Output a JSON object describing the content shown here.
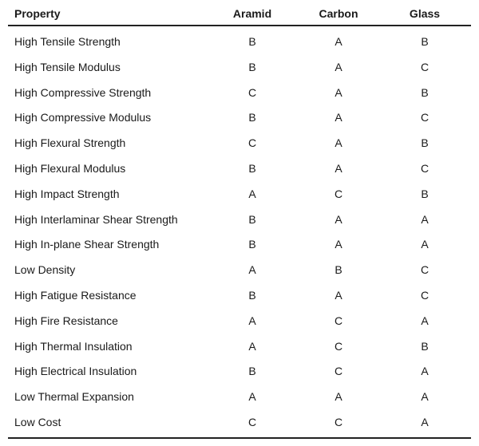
{
  "table": {
    "header": [
      "Property",
      "Aramid",
      "Carbon",
      "Glass"
    ],
    "rows": [
      [
        "High Tensile Strength",
        "B",
        "A",
        "B"
      ],
      [
        "High Tensile Modulus",
        "B",
        "A",
        "C"
      ],
      [
        "High Compressive Strength",
        "C",
        "A",
        "B"
      ],
      [
        "High Compressive Modulus",
        "B",
        "A",
        "C"
      ],
      [
        "High Flexural Strength",
        "C",
        "A",
        "B"
      ],
      [
        "High Flexural Modulus",
        "B",
        "A",
        "C"
      ],
      [
        "High Impact Strength",
        "A",
        "C",
        "B"
      ],
      [
        "High Interlaminar Shear Strength",
        "B",
        "A",
        "A"
      ],
      [
        "High In-plane Shear Strength",
        "B",
        "A",
        "A"
      ],
      [
        "Low Density",
        "A",
        "B",
        "C"
      ],
      [
        "High Fatigue Resistance",
        "B",
        "A",
        "C"
      ],
      [
        "High Fire Resistance",
        "A",
        "C",
        "A"
      ],
      [
        "High Thermal Insulation",
        "A",
        "C",
        "B"
      ],
      [
        "High Electrical Insulation",
        "B",
        "C",
        "A"
      ],
      [
        "Low Thermal Expansion",
        "A",
        "A",
        "A"
      ],
      [
        "Low Cost",
        "C",
        "C",
        "A"
      ]
    ]
  }
}
